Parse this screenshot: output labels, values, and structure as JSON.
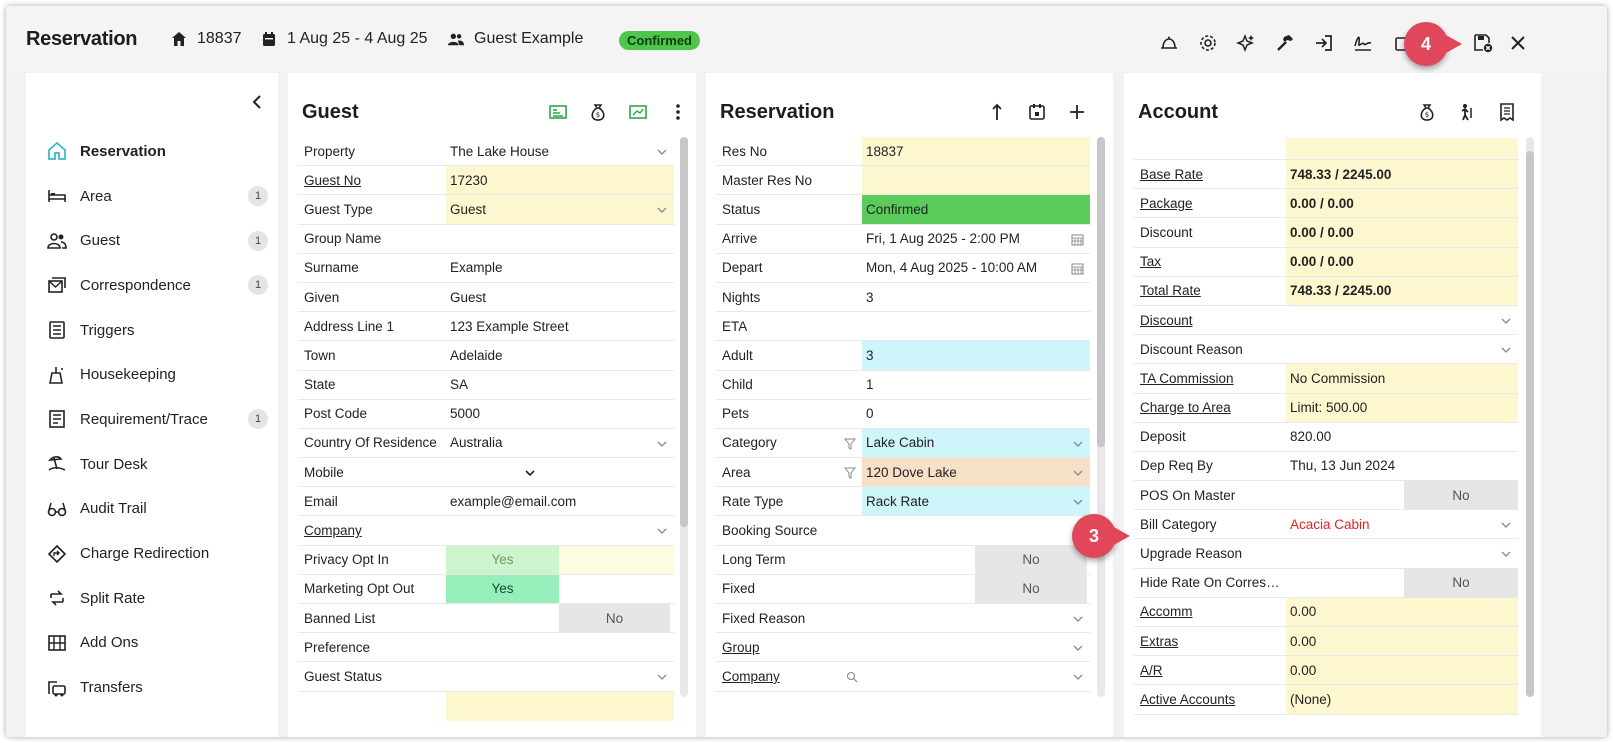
{
  "header": {
    "title": "Reservation",
    "res_no": "18837",
    "dates": "1 Aug 25 - 4 Aug 25",
    "guest": "Guest Example",
    "status": "Confirmed",
    "callout_4": "4",
    "callout_3": "3"
  },
  "sidebar": {
    "items": [
      {
        "label": "Reservation",
        "icon": "home-icon"
      },
      {
        "label": "Area",
        "icon": "bed-icon",
        "count": "1"
      },
      {
        "label": "Guest",
        "icon": "people-icon",
        "count": "1"
      },
      {
        "label": "Correspondence",
        "icon": "mail-icon",
        "count": "1"
      },
      {
        "label": "Triggers",
        "icon": "list-icon"
      },
      {
        "label": "Housekeeping",
        "icon": "cleaning-icon"
      },
      {
        "label": "Requirement/Trace",
        "icon": "checklist-icon",
        "count": "1"
      },
      {
        "label": "Tour Desk",
        "icon": "beach-icon"
      },
      {
        "label": "Audit Trail",
        "icon": "glasses-icon"
      },
      {
        "label": "Charge Redirection",
        "icon": "redirect-icon"
      },
      {
        "label": "Split Rate",
        "icon": "split-icon"
      },
      {
        "label": "Add Ons",
        "icon": "grid-icon"
      },
      {
        "label": "Transfers",
        "icon": "bus-icon"
      }
    ]
  },
  "guest_panel": {
    "title": "Guest",
    "rows": {
      "property": {
        "label": "Property",
        "value": "The Lake House"
      },
      "guest_no": {
        "label": "Guest No",
        "value": "17230"
      },
      "guest_type": {
        "label": "Guest Type",
        "value": "Guest"
      },
      "group_name": {
        "label": "Group Name",
        "value": ""
      },
      "surname": {
        "label": "Surname",
        "value": "Example"
      },
      "given": {
        "label": "Given",
        "value": "Guest"
      },
      "address": {
        "label": "Address Line 1",
        "value": "123 Example Street"
      },
      "town": {
        "label": "Town",
        "value": "Adelaide"
      },
      "state": {
        "label": "State",
        "value": "SA"
      },
      "postcode": {
        "label": "Post Code",
        "value": "5000"
      },
      "country": {
        "label": "Country Of Residence",
        "value": "Australia"
      },
      "mobile": {
        "label": "Mobile",
        "value": ""
      },
      "email": {
        "label": "Email",
        "value": "example@email.com"
      },
      "company": {
        "label": "Company",
        "value": ""
      },
      "privacy": {
        "label": "Privacy Opt In",
        "value": "Yes"
      },
      "marketing": {
        "label": "Marketing Opt Out",
        "value": "Yes"
      },
      "banned": {
        "label": "Banned List",
        "value": "No"
      },
      "preference": {
        "label": "Preference",
        "value": ""
      },
      "guest_status": {
        "label": "Guest Status",
        "value": ""
      }
    }
  },
  "res_panel": {
    "title": "Reservation",
    "rows": {
      "res_no": {
        "label": "Res No",
        "value": "18837"
      },
      "master": {
        "label": "Master Res No",
        "value": ""
      },
      "status": {
        "label": "Status",
        "value": "Confirmed"
      },
      "arrive": {
        "label": "Arrive",
        "value": "Fri, 1 Aug 2025 - 2:00 PM"
      },
      "depart": {
        "label": "Depart",
        "value": "Mon, 4 Aug 2025 - 10:00 AM"
      },
      "nights": {
        "label": "Nights",
        "value": "3"
      },
      "eta": {
        "label": "ETA",
        "value": ""
      },
      "adult": {
        "label": "Adult",
        "value": "3"
      },
      "child": {
        "label": "Child",
        "value": "1"
      },
      "pets": {
        "label": "Pets",
        "value": "0"
      },
      "category": {
        "label": "Category",
        "value": "Lake Cabin"
      },
      "area": {
        "label": "Area",
        "value": "120 Dove Lake"
      },
      "rate_type": {
        "label": "Rate Type",
        "value": "Rack Rate"
      },
      "booking_source": {
        "label": "Booking Source",
        "value": ""
      },
      "long_term": {
        "label": "Long Term",
        "value": "No"
      },
      "fixed": {
        "label": "Fixed",
        "value": "No"
      },
      "fixed_reason": {
        "label": "Fixed Reason",
        "value": ""
      },
      "group": {
        "label": "Group",
        "value": ""
      },
      "company": {
        "label": "Company",
        "value": ""
      }
    }
  },
  "acct_panel": {
    "title": "Account",
    "rows": {
      "base_rate": {
        "label": "Base Rate",
        "value": "748.33 / 2245.00"
      },
      "package": {
        "label": "Package",
        "value": "0.00 / 0.00"
      },
      "discount_amt": {
        "label": "Discount",
        "value": "0.00 / 0.00"
      },
      "tax": {
        "label": "Tax",
        "value": "0.00 / 0.00"
      },
      "total_rate": {
        "label": "Total Rate",
        "value": "748.33 / 2245.00"
      },
      "discount": {
        "label": "Discount",
        "value": ""
      },
      "discount_reason": {
        "label": "Discount Reason",
        "value": ""
      },
      "ta_commission": {
        "label": "TA Commission",
        "value": "No Commission"
      },
      "charge_to_area": {
        "label": "Charge to Area",
        "value": "Limit: 500.00"
      },
      "deposit": {
        "label": "Deposit",
        "value": "820.00"
      },
      "dep_req_by": {
        "label": "Dep Req By",
        "value": "Thu, 13 Jun 2024"
      },
      "pos_on_master": {
        "label": "POS On Master",
        "value": "No"
      },
      "bill_category": {
        "label": "Bill Category",
        "value": "Acacia Cabin"
      },
      "upgrade_reason": {
        "label": "Upgrade Reason",
        "value": ""
      },
      "hide_rate": {
        "label": "Hide Rate On Correspo...",
        "value": "No"
      },
      "accomm": {
        "label": "Accomm",
        "value": "0.00"
      },
      "extras": {
        "label": "Extras",
        "value": "0.00"
      },
      "ar": {
        "label": "A/R",
        "value": "0.00"
      },
      "active_accounts": {
        "label": "Active Accounts",
        "value": "(None)"
      }
    }
  }
}
